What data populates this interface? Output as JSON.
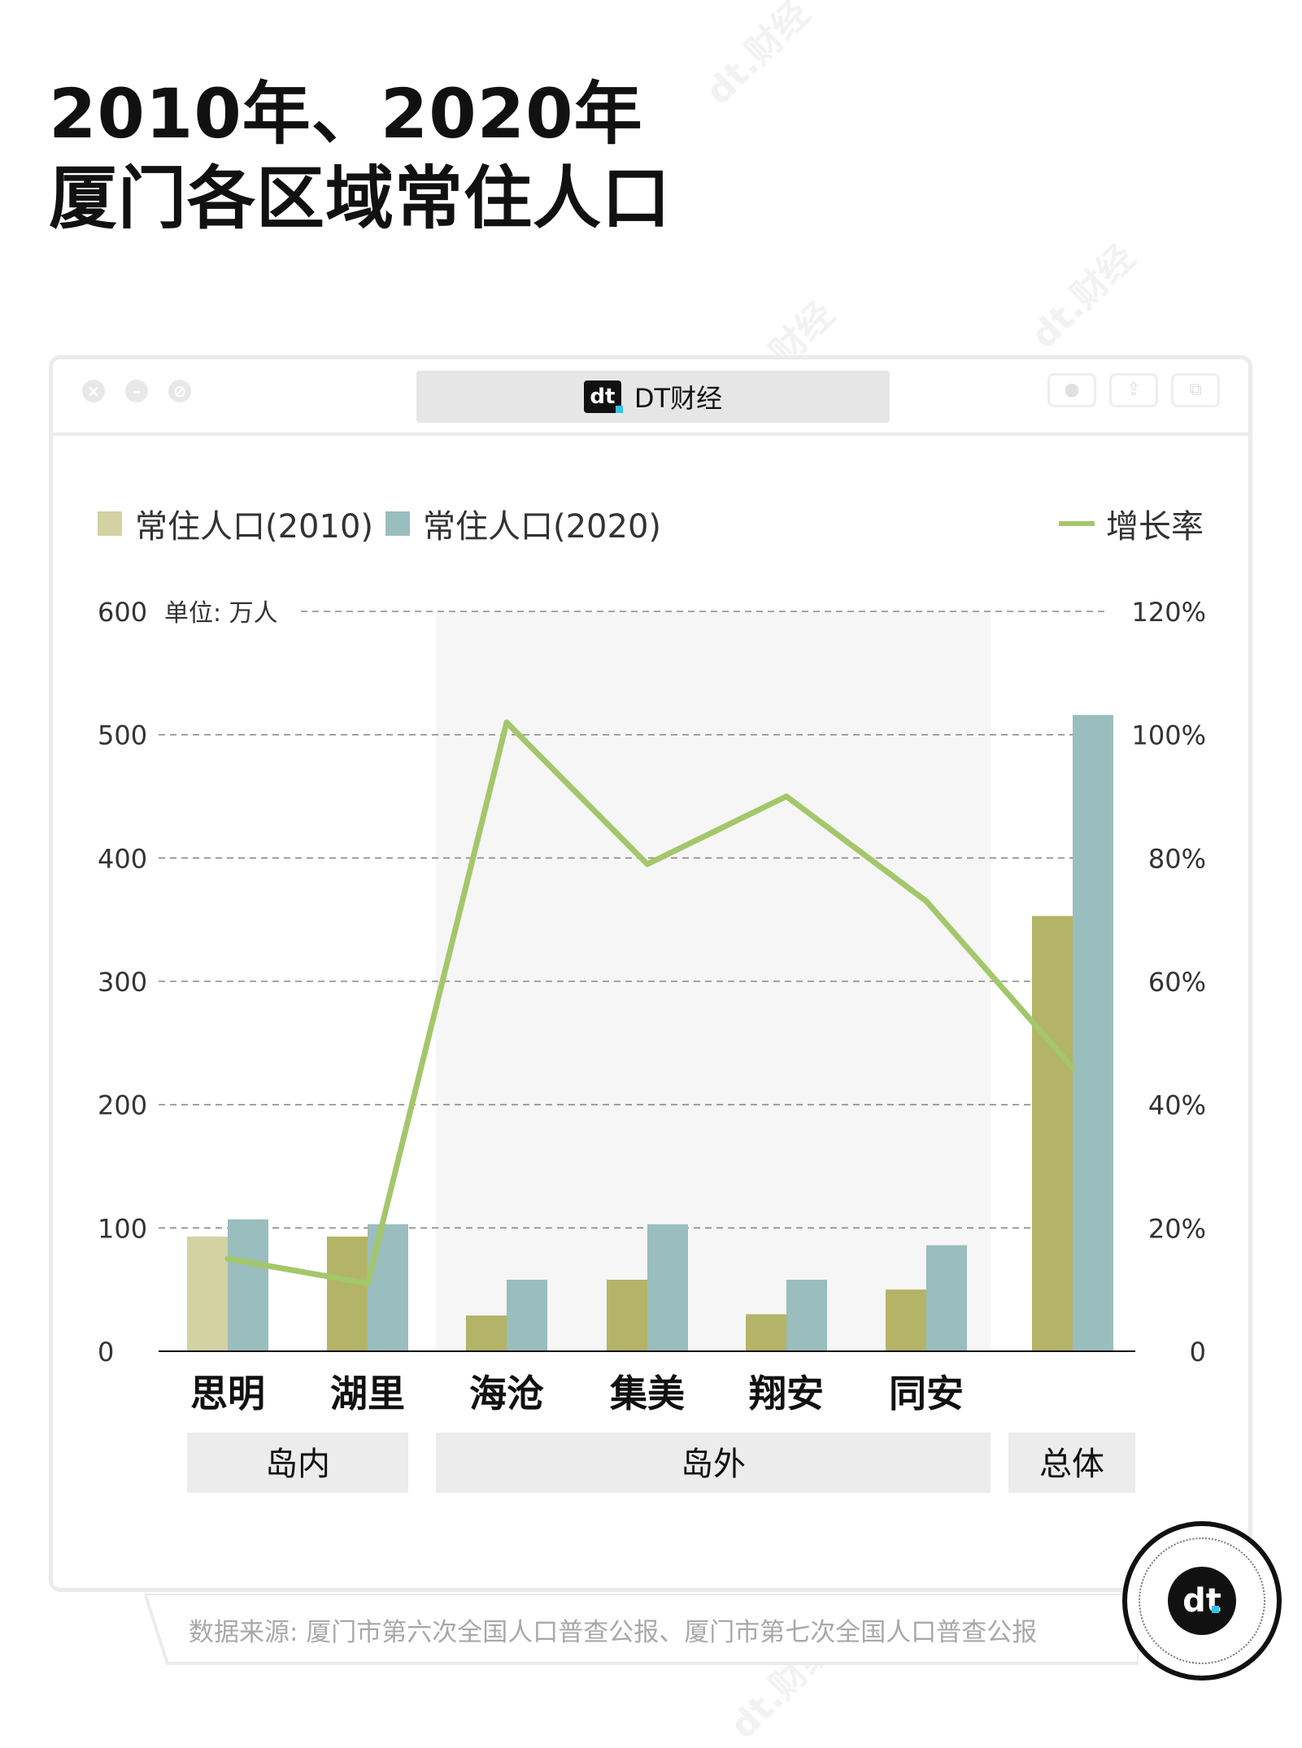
{
  "title": {
    "line1": "2010年、2020年",
    "line2": "厦门各区域常住人口"
  },
  "window": {
    "tab_label": "DT财经",
    "logo_text": "dt"
  },
  "watermark": "dt.财经",
  "legend": {
    "s2010": "常住人口(2010)",
    "s2020": "常住人口(2020)",
    "rate": "增长率"
  },
  "unit_label": "单位: 万人",
  "source": "数据来源: 厦门市第六次全国人口普查公报、厦门市第七次全国人口普查公报",
  "badge_text": "dt",
  "colors": {
    "s2010": "#b3b467",
    "s2010_highlight": "#d2d2a3",
    "s2020": "#9abdbd",
    "rate": "#a3c76a",
    "group_bg": "#f6f6f6",
    "group_label_bg": "#ececec"
  },
  "chart_data": {
    "type": "bar",
    "categories": [
      "思明",
      "湖里",
      "海沧",
      "集美",
      "翔安",
      "同安",
      ""
    ],
    "series": [
      {
        "name": "常住人口(2010)",
        "values": [
          93,
          93,
          29,
          58,
          30,
          50,
          353
        ]
      },
      {
        "name": "常住人口(2020)",
        "values": [
          107,
          103,
          58,
          103,
          58,
          86,
          516
        ]
      },
      {
        "name": "增长率",
        "type": "line",
        "axis": "right",
        "values": [
          15,
          11,
          102,
          79,
          90,
          73,
          46
        ]
      }
    ],
    "groups": [
      {
        "label": "岛内",
        "categories": [
          "思明",
          "湖里"
        ]
      },
      {
        "label": "岛外",
        "categories": [
          "海沧",
          "集美",
          "翔安",
          "同安"
        ]
      },
      {
        "label": "总体",
        "categories": [
          ""
        ]
      }
    ],
    "y_left": {
      "ticks": [
        "0",
        "100",
        "200",
        "300",
        "400",
        "500",
        "600"
      ],
      "ylim": [
        0,
        600
      ]
    },
    "y_right": {
      "ticks": [
        "0",
        "20%",
        "40%",
        "60%",
        "80%",
        "100%",
        "120%"
      ],
      "ylim": [
        0,
        120
      ]
    },
    "grid": true,
    "legend_position": "top"
  }
}
